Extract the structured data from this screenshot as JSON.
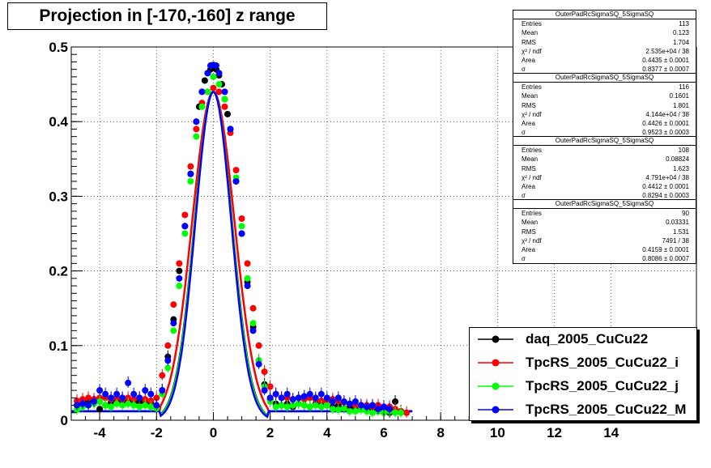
{
  "title": "Projection in [-170,-160] z range",
  "stat_boxes": [
    {
      "name": "OuterPadRcSigmaSQ_5SigmaSQ",
      "rows": [
        {
          "label": "Entries",
          "value": "113"
        },
        {
          "label": "Mean",
          "value": "0.123"
        },
        {
          "label": "RMS",
          "value": "1.704"
        },
        {
          "label": "χ² / ndf",
          "value": "2.535e+04 / 38"
        },
        {
          "label": "Area",
          "value": "0.4435 ± 0.0001"
        },
        {
          "label": "σ",
          "value": "0.8377 ± 0.0007"
        }
      ]
    },
    {
      "name": "OuterPadRcSigmaSQ_5SigmaSQ",
      "rows": [
        {
          "label": "Entries",
          "value": "116"
        },
        {
          "label": "Mean",
          "value": "0.1601"
        },
        {
          "label": "RMS",
          "value": "1.801"
        },
        {
          "label": "χ² / ndf",
          "value": "4.144e+04 / 38"
        },
        {
          "label": "Area",
          "value": "0.4426 ± 0.0001"
        },
        {
          "label": "σ",
          "value": "0.9523 ± 0.0003"
        }
      ]
    },
    {
      "name": "OuterPadRcSigmaSQ_5SigmaSQ",
      "rows": [
        {
          "label": "Entries",
          "value": "108"
        },
        {
          "label": "Mean",
          "value": "0.08824"
        },
        {
          "label": "RMS",
          "value": "1.623"
        },
        {
          "label": "χ² / ndf",
          "value": "4.791e+04 / 38"
        },
        {
          "label": "Area",
          "value": "0.4412 ± 0.0001"
        },
        {
          "label": "σ",
          "value": "0.8294 ± 0.0003"
        }
      ]
    },
    {
      "name": "OuterPadRcSigmaSQ_5SigmaSQ",
      "rows": [
        {
          "label": "Entries",
          "value": "90"
        },
        {
          "label": "Mean",
          "value": "0.03331"
        },
        {
          "label": "RMS",
          "value": "1.531"
        },
        {
          "label": "χ² / ndf",
          "value": "7491 / 38"
        },
        {
          "label": "Area",
          "value": "0.4159 ± 0.0001"
        },
        {
          "label": "σ",
          "value": "0.8086 ± 0.0007"
        }
      ]
    }
  ],
  "legend": [
    {
      "label": "daq_2005_CuCu22",
      "color": "#000000"
    },
    {
      "label": "TpcRS_2005_CuCu22_i",
      "color": "#ff0000"
    },
    {
      "label": "TpcRS_2005_CuCu22_j",
      "color": "#00ff00"
    },
    {
      "label": "TpcRS_2005_CuCu22_M",
      "color": "#0000ff"
    }
  ],
  "chart_data": {
    "type": "scatter",
    "title": "Projection in [-170,-160] z range",
    "xlabel": "",
    "ylabel": "",
    "xlim": [
      -5,
      17
    ],
    "ylim": [
      0,
      0.5
    ],
    "x_ticks": [
      -4,
      -2,
      0,
      2,
      4,
      6,
      8,
      10,
      12,
      14
    ],
    "y_ticks": [
      0,
      0.1,
      0.2,
      0.3,
      0.4,
      0.5
    ],
    "y_tick_labels": [
      "0",
      "0.1",
      "0.2",
      "0.3",
      "0.4",
      "0.5"
    ],
    "grid": true,
    "legend_position": "bottom-right",
    "series": [
      {
        "name": "daq_2005_CuCu22",
        "color": "#000000",
        "points": [
          [
            -4.8,
            0.02
          ],
          [
            -4.6,
            0.022
          ],
          [
            -4.4,
            0.025
          ],
          [
            -4.2,
            0.024
          ],
          [
            -4.0,
            0.015
          ],
          [
            -3.8,
            0.02
          ],
          [
            -3.6,
            0.024
          ],
          [
            -3.4,
            0.026
          ],
          [
            -3.2,
            0.024
          ],
          [
            -3.0,
            0.025
          ],
          [
            -2.8,
            0.023
          ],
          [
            -2.6,
            0.025
          ],
          [
            -2.4,
            0.022
          ],
          [
            -2.2,
            0.024
          ],
          [
            -2.0,
            0.018
          ],
          [
            -1.8,
            0.04
          ],
          [
            -1.6,
            0.085
          ],
          [
            -1.4,
            0.135
          ],
          [
            -1.2,
            0.2
          ],
          [
            -1.0,
            0.26
          ],
          [
            -0.8,
            0.33
          ],
          [
            -0.6,
            0.4
          ],
          [
            -0.5,
            0.42
          ],
          [
            -0.4,
            0.44
          ],
          [
            -0.3,
            0.455
          ],
          [
            -0.2,
            0.465
          ],
          [
            -0.1,
            0.47
          ],
          [
            0.0,
            0.472
          ],
          [
            0.1,
            0.47
          ],
          [
            0.2,
            0.462
          ],
          [
            0.3,
            0.45
          ],
          [
            0.4,
            0.43
          ],
          [
            0.5,
            0.41
          ],
          [
            0.6,
            0.39
          ],
          [
            0.8,
            0.32
          ],
          [
            1.0,
            0.25
          ],
          [
            1.2,
            0.185
          ],
          [
            1.4,
            0.125
          ],
          [
            1.6,
            0.08
          ],
          [
            1.8,
            0.048
          ],
          [
            2.0,
            0.028
          ],
          [
            2.2,
            0.022
          ],
          [
            2.4,
            0.02
          ],
          [
            2.6,
            0.022
          ],
          [
            2.8,
            0.018
          ],
          [
            3.0,
            0.022
          ],
          [
            3.2,
            0.02
          ],
          [
            3.4,
            0.018
          ],
          [
            3.6,
            0.022
          ],
          [
            3.8,
            0.02
          ],
          [
            4.0,
            0.02
          ],
          [
            4.2,
            0.018
          ],
          [
            4.4,
            0.02
          ],
          [
            4.6,
            0.016
          ],
          [
            4.8,
            0.018
          ],
          [
            5.0,
            0.015
          ],
          [
            5.2,
            0.02
          ],
          [
            5.4,
            0.018
          ],
          [
            5.6,
            0.015
          ],
          [
            5.8,
            0.012
          ],
          [
            6.0,
            0.015
          ],
          [
            6.2,
            0.01
          ],
          [
            6.4,
            0.025
          ],
          [
            6.6,
            0.012
          ]
        ]
      },
      {
        "name": "TpcRS_2005_CuCu22_i",
        "color": "#ff0000",
        "points": [
          [
            -4.8,
            0.026
          ],
          [
            -4.6,
            0.028
          ],
          [
            -4.4,
            0.03
          ],
          [
            -4.2,
            0.028
          ],
          [
            -4.0,
            0.03
          ],
          [
            -3.8,
            0.03
          ],
          [
            -3.6,
            0.028
          ],
          [
            -3.4,
            0.03
          ],
          [
            -3.2,
            0.028
          ],
          [
            -3.0,
            0.03
          ],
          [
            -2.8,
            0.028
          ],
          [
            -2.6,
            0.03
          ],
          [
            -2.4,
            0.028
          ],
          [
            -2.2,
            0.026
          ],
          [
            -2.0,
            0.03
          ],
          [
            -1.8,
            0.06
          ],
          [
            -1.6,
            0.1
          ],
          [
            -1.4,
            0.155
          ],
          [
            -1.2,
            0.21
          ],
          [
            -1.0,
            0.275
          ],
          [
            -0.8,
            0.34
          ],
          [
            -0.6,
            0.39
          ],
          [
            -0.4,
            0.425
          ],
          [
            -0.2,
            0.44
          ],
          [
            0.0,
            0.445
          ],
          [
            0.2,
            0.44
          ],
          [
            0.4,
            0.42
          ],
          [
            0.6,
            0.385
          ],
          [
            0.8,
            0.335
          ],
          [
            1.0,
            0.27
          ],
          [
            1.2,
            0.21
          ],
          [
            1.4,
            0.15
          ],
          [
            1.6,
            0.1
          ],
          [
            1.8,
            0.065
          ],
          [
            2.0,
            0.045
          ],
          [
            2.2,
            0.035
          ],
          [
            2.4,
            0.03
          ],
          [
            2.6,
            0.03
          ],
          [
            2.8,
            0.028
          ],
          [
            3.0,
            0.03
          ],
          [
            3.2,
            0.028
          ],
          [
            3.4,
            0.03
          ],
          [
            3.6,
            0.028
          ],
          [
            3.8,
            0.026
          ],
          [
            4.0,
            0.025
          ],
          [
            4.2,
            0.028
          ],
          [
            4.4,
            0.026
          ],
          [
            4.6,
            0.024
          ],
          [
            4.8,
            0.022
          ],
          [
            5.0,
            0.02
          ],
          [
            5.2,
            0.02
          ],
          [
            5.4,
            0.02
          ],
          [
            5.6,
            0.018
          ],
          [
            5.8,
            0.02
          ],
          [
            6.0,
            0.018
          ],
          [
            6.2,
            0.018
          ],
          [
            6.4,
            0.015
          ],
          [
            6.6,
            0.012
          ],
          [
            6.8,
            0.01
          ]
        ]
      },
      {
        "name": "TpcRS_2005_CuCu22_j",
        "color": "#00ff00",
        "points": [
          [
            -4.8,
            0.014
          ],
          [
            -4.6,
            0.018
          ],
          [
            -4.4,
            0.02
          ],
          [
            -4.2,
            0.022
          ],
          [
            -4.0,
            0.025
          ],
          [
            -3.8,
            0.02
          ],
          [
            -3.6,
            0.018
          ],
          [
            -3.4,
            0.022
          ],
          [
            -3.2,
            0.02
          ],
          [
            -3.0,
            0.022
          ],
          [
            -2.8,
            0.02
          ],
          [
            -2.6,
            0.018
          ],
          [
            -2.4,
            0.02
          ],
          [
            -2.2,
            0.018
          ],
          [
            -2.0,
            0.016
          ],
          [
            -1.8,
            0.035
          ],
          [
            -1.6,
            0.07
          ],
          [
            -1.4,
            0.12
          ],
          [
            -1.2,
            0.18
          ],
          [
            -1.0,
            0.25
          ],
          [
            -0.8,
            0.32
          ],
          [
            -0.6,
            0.38
          ],
          [
            -0.4,
            0.42
          ],
          [
            -0.2,
            0.44
          ],
          [
            0.0,
            0.46
          ],
          [
            0.2,
            0.45
          ],
          [
            0.4,
            0.43
          ],
          [
            0.6,
            0.39
          ],
          [
            0.8,
            0.325
          ],
          [
            1.0,
            0.26
          ],
          [
            1.2,
            0.19
          ],
          [
            1.4,
            0.13
          ],
          [
            1.6,
            0.08
          ],
          [
            1.8,
            0.045
          ],
          [
            2.0,
            0.025
          ],
          [
            2.2,
            0.018
          ],
          [
            2.4,
            0.02
          ],
          [
            2.6,
            0.018
          ],
          [
            2.8,
            0.02
          ],
          [
            3.0,
            0.022
          ],
          [
            3.2,
            0.02
          ],
          [
            3.4,
            0.018
          ],
          [
            3.6,
            0.02
          ],
          [
            3.8,
            0.018
          ],
          [
            4.0,
            0.02
          ],
          [
            4.2,
            0.015
          ],
          [
            4.4,
            0.014
          ],
          [
            4.6,
            0.016
          ],
          [
            4.8,
            0.012
          ],
          [
            5.0,
            0.012
          ],
          [
            5.2,
            0.014
          ],
          [
            5.4,
            0.012
          ],
          [
            5.6,
            0.01
          ],
          [
            5.8,
            0.012
          ],
          [
            6.0,
            0.01
          ],
          [
            6.2,
            0.012
          ],
          [
            6.4,
            0.01
          ],
          [
            6.6,
            0.01
          ]
        ]
      },
      {
        "name": "TpcRS_2005_CuCu22_M",
        "color": "#0000ff",
        "points": [
          [
            -4.8,
            0.02
          ],
          [
            -4.6,
            0.022
          ],
          [
            -4.4,
            0.02
          ],
          [
            -4.2,
            0.025
          ],
          [
            -4.0,
            0.04
          ],
          [
            -3.8,
            0.035
          ],
          [
            -3.6,
            0.03
          ],
          [
            -3.4,
            0.035
          ],
          [
            -3.2,
            0.03
          ],
          [
            -3.0,
            0.05
          ],
          [
            -2.8,
            0.035
          ],
          [
            -2.6,
            0.03
          ],
          [
            -2.4,
            0.04
          ],
          [
            -2.2,
            0.035
          ],
          [
            -2.0,
            0.02
          ],
          [
            -1.8,
            0.04
          ],
          [
            -1.6,
            0.08
          ],
          [
            -1.4,
            0.13
          ],
          [
            -1.2,
            0.19
          ],
          [
            -1.0,
            0.26
          ],
          [
            -0.8,
            0.33
          ],
          [
            -0.6,
            0.4
          ],
          [
            -0.4,
            0.44
          ],
          [
            -0.2,
            0.465
          ],
          [
            -0.1,
            0.475
          ],
          [
            0.0,
            0.476
          ],
          [
            0.1,
            0.475
          ],
          [
            0.2,
            0.465
          ],
          [
            0.4,
            0.44
          ],
          [
            0.6,
            0.39
          ],
          [
            0.8,
            0.32
          ],
          [
            1.0,
            0.25
          ],
          [
            1.2,
            0.18
          ],
          [
            1.4,
            0.12
          ],
          [
            1.6,
            0.075
          ],
          [
            1.8,
            0.04
          ],
          [
            2.0,
            0.03
          ],
          [
            2.2,
            0.035
          ],
          [
            2.4,
            0.03
          ],
          [
            2.6,
            0.035
          ],
          [
            2.8,
            0.028
          ],
          [
            3.0,
            0.03
          ],
          [
            3.2,
            0.032
          ],
          [
            3.4,
            0.035
          ],
          [
            3.6,
            0.03
          ],
          [
            3.8,
            0.035
          ],
          [
            4.0,
            0.03
          ],
          [
            4.2,
            0.025
          ],
          [
            4.4,
            0.03
          ],
          [
            4.6,
            0.025
          ],
          [
            4.8,
            0.022
          ],
          [
            5.0,
            0.025
          ],
          [
            5.2,
            0.02
          ],
          [
            5.4,
            0.018
          ],
          [
            5.6,
            0.02
          ],
          [
            5.8,
            0.015
          ],
          [
            6.0,
            0.018
          ],
          [
            6.2,
            0.015
          ]
        ]
      }
    ],
    "fits": [
      {
        "series": "daq_2005_CuCu22",
        "area": 0.4435,
        "sigma": 0.8377,
        "mean": 0.0
      },
      {
        "series": "TpcRS_2005_CuCu22_i",
        "area": 0.4426,
        "sigma": 0.9523,
        "mean": 0.0
      },
      {
        "series": "TpcRS_2005_CuCu22_j",
        "area": 0.4412,
        "sigma": 0.8294,
        "mean": 0.0
      },
      {
        "series": "TpcRS_2005_CuCu22_M",
        "area": 0.4159,
        "sigma": 0.8086,
        "mean": 0.0
      }
    ]
  }
}
